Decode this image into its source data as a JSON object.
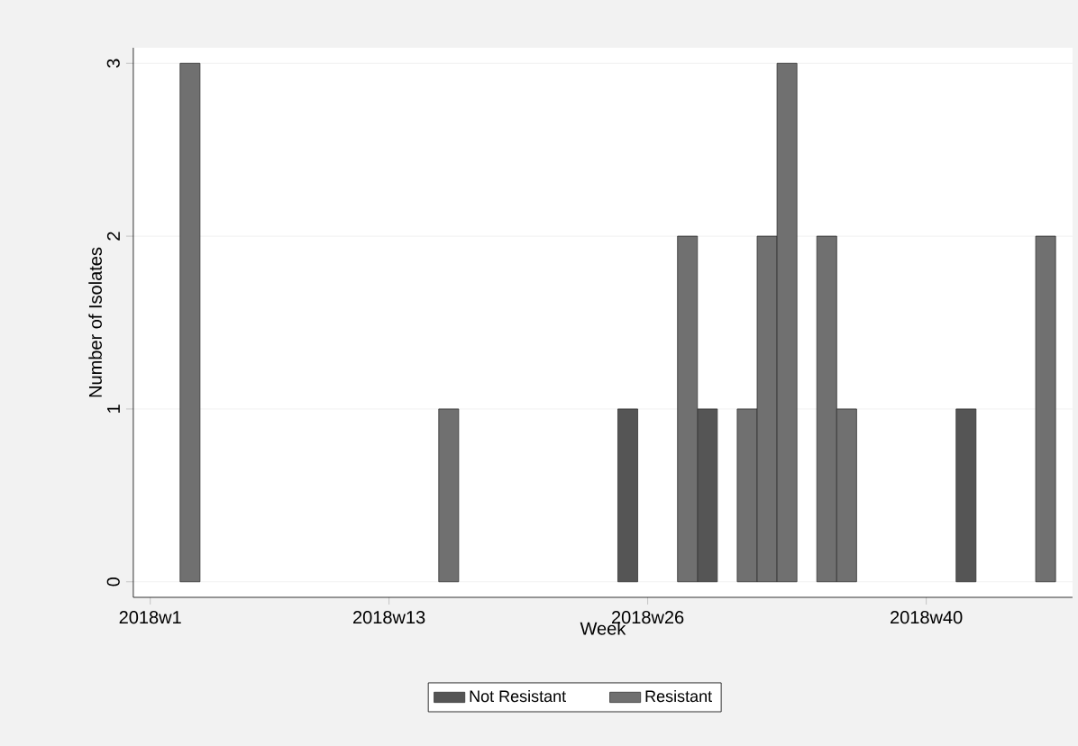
{
  "chart_data": {
    "type": "bar",
    "xlabel": "Week",
    "ylabel": "Number of Isolates",
    "categories": [
      "2018w1",
      null,
      null,
      null,
      null,
      null,
      null,
      null,
      null,
      null,
      null,
      null,
      "2018w13",
      null,
      null,
      null,
      null,
      null,
      null,
      null,
      null,
      null,
      null,
      null,
      null,
      "2018w26",
      null,
      null,
      null,
      null,
      null,
      null,
      null,
      null,
      null,
      null,
      null,
      null,
      null,
      "2018w40",
      null,
      null,
      null,
      null,
      null,
      null,
      null
    ],
    "series": [
      {
        "name": "Not Resistant",
        "color": "#555555",
        "values": [
          null,
          null,
          null,
          null,
          null,
          null,
          null,
          null,
          null,
          null,
          null,
          null,
          null,
          null,
          null,
          null,
          null,
          null,
          null,
          null,
          null,
          null,
          null,
          null,
          1,
          null,
          null,
          null,
          1,
          null,
          null,
          null,
          null,
          null,
          null,
          null,
          null,
          null,
          null,
          null,
          null,
          1,
          null,
          null,
          null,
          null,
          null
        ]
      },
      {
        "name": "Resistant",
        "color": "#707070",
        "values": [
          null,
          null,
          3,
          null,
          null,
          null,
          null,
          null,
          null,
          null,
          null,
          null,
          null,
          null,
          null,
          1,
          null,
          null,
          null,
          null,
          null,
          null,
          null,
          null,
          null,
          null,
          null,
          2,
          null,
          null,
          1,
          2,
          3,
          null,
          2,
          1,
          null,
          null,
          null,
          null,
          null,
          null,
          null,
          null,
          null,
          2,
          null
        ]
      }
    ],
    "ylim": [
      -0.09,
      3.09
    ],
    "yticks": [
      0,
      1,
      2,
      3
    ],
    "grid": "y",
    "legend": "bottom"
  }
}
